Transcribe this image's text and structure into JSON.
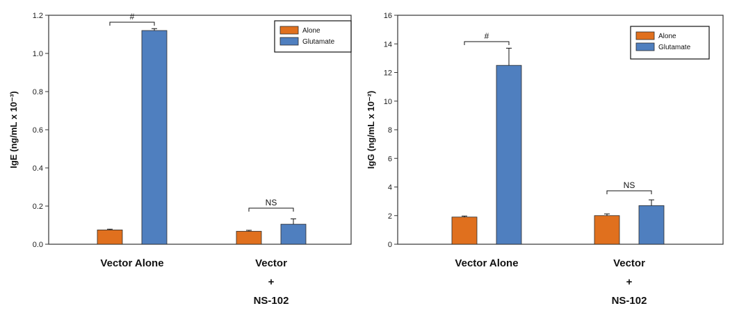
{
  "colors": {
    "alone": "#e0701e",
    "glutamate": "#4f7fbf",
    "axis": "#333333"
  },
  "chart_data": [
    {
      "type": "bar",
      "ylabel": "IgE (ng/mL x 10⁻³)",
      "ylim": [
        0,
        1.2
      ],
      "yticks": [
        "0.0",
        "0.2",
        "0.4",
        "0.6",
        "0.8",
        "1.0",
        "1.2"
      ],
      "categories": [
        [
          "Vector Alone"
        ],
        [
          "Vector",
          "+",
          "NS-102"
        ]
      ],
      "series": [
        {
          "name": "Alone",
          "values": [
            0.075,
            0.068
          ],
          "errors": [
            0.004,
            0.005
          ]
        },
        {
          "name": "Glutamate",
          "values": [
            1.12,
            0.105
          ],
          "errors": [
            0.01,
            0.028
          ]
        }
      ],
      "annotations": [
        "#",
        "NS"
      ],
      "legend": "top-right",
      "grid": false
    },
    {
      "type": "bar",
      "ylabel": "IgG (ng/mL x 10⁻²)",
      "ylim": [
        0,
        16
      ],
      "yticks": [
        "0",
        "2",
        "4",
        "6",
        "8",
        "10",
        "12",
        "14",
        "16"
      ],
      "categories": [
        [
          "Vector Alone"
        ],
        [
          "Vector",
          "+",
          "NS-102"
        ]
      ],
      "series": [
        {
          "name": "Alone",
          "values": [
            1.9,
            2.0
          ],
          "errors": [
            0.07,
            0.12
          ]
        },
        {
          "name": "Glutamate",
          "values": [
            12.5,
            2.7
          ],
          "errors": [
            1.2,
            0.4
          ]
        }
      ],
      "annotations": [
        "#",
        "NS"
      ],
      "legend": "top-right",
      "grid": false
    }
  ]
}
